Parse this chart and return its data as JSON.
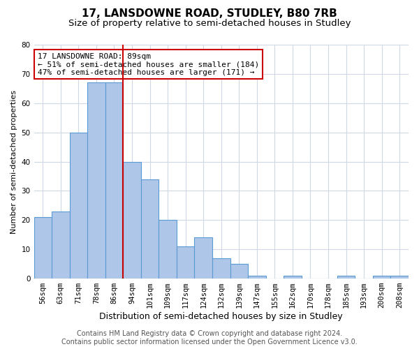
{
  "title": "17, LANSDOWNE ROAD, STUDLEY, B80 7RB",
  "subtitle": "Size of property relative to semi-detached houses in Studley",
  "xlabel": "Distribution of semi-detached houses by size in Studley",
  "ylabel": "Number of semi-detached properties",
  "categories": [
    "56sqm",
    "63sqm",
    "71sqm",
    "78sqm",
    "86sqm",
    "94sqm",
    "101sqm",
    "109sqm",
    "117sqm",
    "124sqm",
    "132sqm",
    "139sqm",
    "147sqm",
    "155sqm",
    "162sqm",
    "170sqm",
    "178sqm",
    "185sqm",
    "193sqm",
    "200sqm",
    "208sqm"
  ],
  "values": [
    21,
    23,
    50,
    67,
    67,
    40,
    34,
    20,
    11,
    14,
    7,
    5,
    1,
    0,
    1,
    0,
    0,
    1,
    0,
    1,
    1
  ],
  "bar_color": "#aec6e8",
  "bar_edge_color": "#5b9bd5",
  "vline_color": "#cc0000",
  "ylim": [
    0,
    80
  ],
  "yticks": [
    0,
    10,
    20,
    30,
    40,
    50,
    60,
    70,
    80
  ],
  "annotation_title": "17 LANSDOWNE ROAD: 89sqm",
  "annotation_line1": "← 51% of semi-detached houses are smaller (184)",
  "annotation_line2": "47% of semi-detached houses are larger (171) →",
  "annotation_box_color": "#ffffff",
  "annotation_border_color": "#cc0000",
  "footer_line1": "Contains HM Land Registry data © Crown copyright and database right 2024.",
  "footer_line2": "Contains public sector information licensed under the Open Government Licence v3.0.",
  "background_color": "#ffffff",
  "grid_color": "#d0d8e8",
  "title_fontsize": 11,
  "subtitle_fontsize": 9.5,
  "xlabel_fontsize": 9,
  "ylabel_fontsize": 8,
  "tick_fontsize": 7.5,
  "footer_fontsize": 7,
  "annot_fontsize": 8
}
